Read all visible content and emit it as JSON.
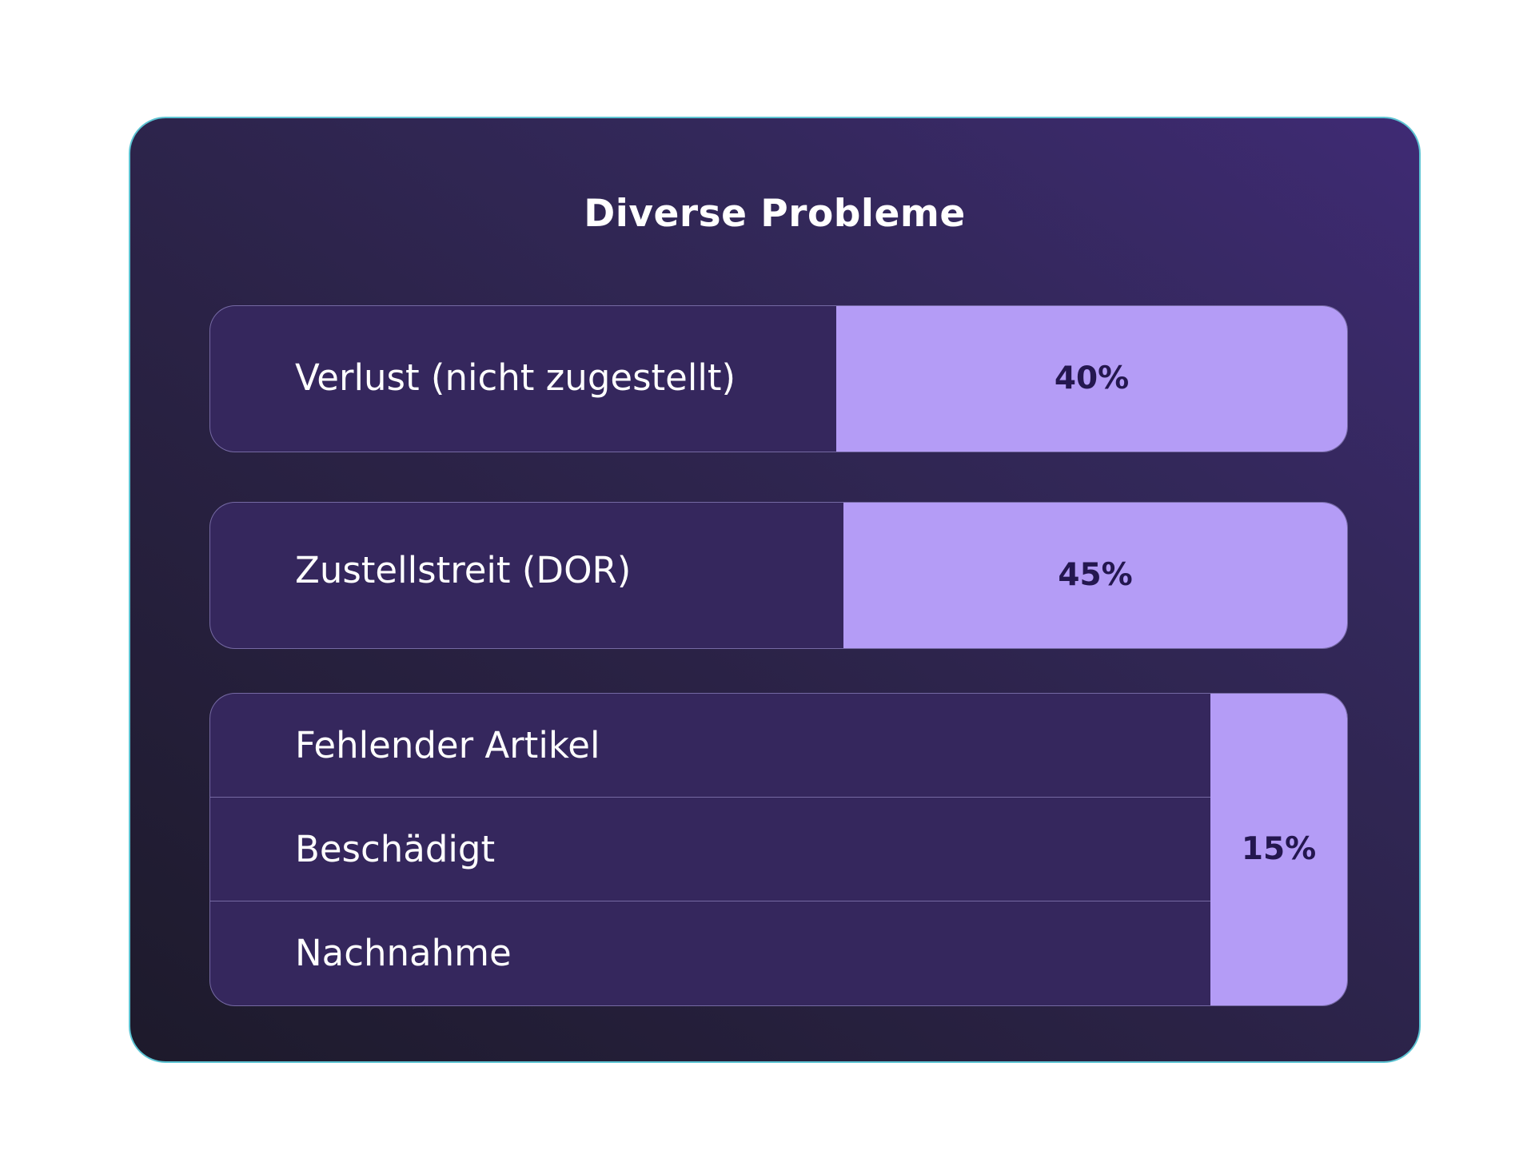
{
  "chart_data": {
    "type": "bar",
    "title": "Diverse Probleme",
    "categories": [
      "Verlust (nicht zugestellt)",
      "Zustellstreit (DOR)",
      "Fehlender Artikel / Beschädigt / Nachnahme"
    ],
    "values": [
      40,
      45,
      15
    ],
    "value_labels": [
      "40%",
      "45%",
      "15%"
    ],
    "grouped_labels": [
      "Fehlender Artikel",
      "Beschädigt",
      "Nachnahme"
    ],
    "unit": "%",
    "ylim": [
      0,
      100
    ]
  },
  "colors": {
    "card_background": "#2a2245",
    "row_background": "#35275d",
    "fill": "#b49cf6",
    "value_text": "#24174f",
    "card_border": "#5cc3d2"
  }
}
